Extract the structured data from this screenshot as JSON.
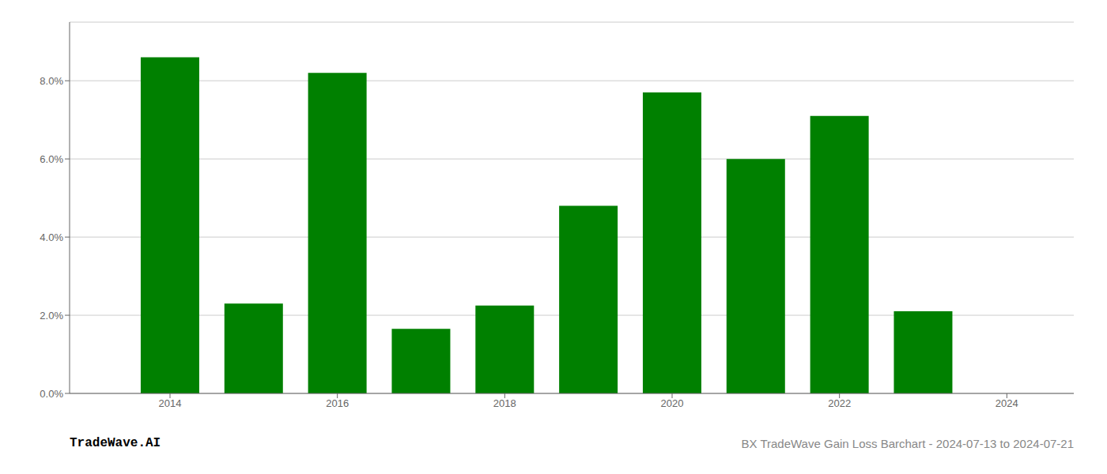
{
  "chart_data": {
    "type": "bar",
    "title": "BX TradeWave Gain Loss Barchart - 2024-07-13 to 2024-07-21",
    "annotations": [
      {
        "text": "TradeWave.AI"
      }
    ],
    "x": [
      2014,
      2015,
      2016,
      2017,
      2018,
      2019,
      2020,
      2021,
      2022,
      2023
    ],
    "values": [
      0.086,
      0.023,
      0.082,
      0.0165,
      0.0225,
      0.048,
      0.077,
      0.06,
      0.071,
      0.021
    ],
    "color": "#008000",
    "xlim": [
      2012.8,
      2024.8
    ],
    "xticks": [
      2014,
      2016,
      2018,
      2020,
      2022,
      2024
    ],
    "ylim": [
      0,
      0.095
    ],
    "yticks": [
      {
        "value": 0.0,
        "label": "0.0%"
      },
      {
        "value": 0.02,
        "label": "2.0%"
      },
      {
        "value": 0.04,
        "label": "4.0%"
      },
      {
        "value": 0.06,
        "label": "6.0%"
      },
      {
        "value": 0.08,
        "label": "8.0%"
      }
    ],
    "grid": true
  }
}
